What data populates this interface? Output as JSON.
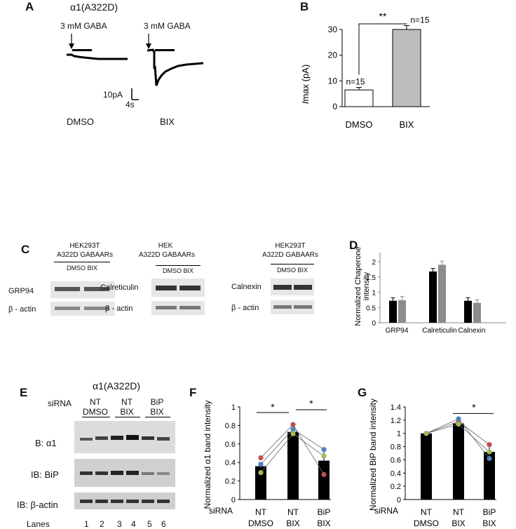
{
  "panels": {
    "A": {
      "letter": "A",
      "title": "α1(A322D)",
      "gaba_label_1": "3 mM GABA",
      "gaba_label_2": "3 mM GABA",
      "scale_current": "10pA",
      "scale_time": "4s",
      "cond_1": "DMSO",
      "cond_2": "BIX"
    },
    "B": {
      "letter": "B"
    },
    "C": {
      "letter": "C",
      "blots": [
        {
          "header_1": "HEK293T",
          "header_2": "A322D GABAARs",
          "lanes": "DMSO BIX",
          "protein": "GRP94",
          "loading": "β - actin"
        },
        {
          "header_1": "HEK",
          "header_2": "A322D GABAARs",
          "lanes": "DMSO BIX",
          "protein": "Calreticulin",
          "loading": "β - actin"
        },
        {
          "header_1": "HEK293T",
          "header_2": "A322D GABAARs",
          "lanes": "DMSO BIX",
          "protein": "Calnexin",
          "loading": "β - actin"
        }
      ]
    },
    "D": {
      "letter": "D"
    },
    "E": {
      "letter": "E",
      "title": "α1(A322D)",
      "sirna_label": "siRNA",
      "groups": [
        {
          "top": "NT",
          "bottom": "DMSO"
        },
        {
          "top": "NT",
          "bottom": "BIX"
        },
        {
          "top": "BiP",
          "bottom": "BIX"
        }
      ],
      "rows": [
        "B: α1",
        "IB: BiP",
        "IB: β-actin"
      ],
      "lanes_label": "Lanes",
      "lanes": [
        "1",
        "2",
        "3",
        "4",
        "5",
        "6"
      ]
    },
    "F": {
      "letter": "F"
    },
    "G": {
      "letter": "G"
    }
  },
  "chart_data": [
    {
      "id": "B",
      "type": "bar",
      "categories": [
        "DMSO",
        "BIX"
      ],
      "values": [
        6.5,
        30
      ],
      "errors": [
        1.0,
        1.5
      ],
      "n_labels": [
        "n=15",
        "n=15"
      ],
      "ylabel": "Imax (pA)",
      "ylabel_italic": "I",
      "ylabel_rest": "max (pA)",
      "ylim": [
        0,
        30
      ],
      "yticks": [
        "0",
        "10",
        "20",
        "30"
      ],
      "significance": "**",
      "colors": [
        "#ffffff",
        "#bdbdbd"
      ]
    },
    {
      "id": "D",
      "type": "bar",
      "categories": [
        "GRP94",
        "Calreticulin",
        "Calnexin"
      ],
      "series": [
        {
          "values": [
            0.72,
            1.68,
            0.72
          ],
          "errors": [
            0.1,
            0.1,
            0.1
          ],
          "color": "#000000"
        },
        {
          "values": [
            0.74,
            1.9,
            0.65
          ],
          "errors": [
            0.12,
            0.12,
            0.1
          ],
          "color": "#8c8c8c"
        }
      ],
      "ylabel": "Normalized Chaperone intensity",
      "ylim": [
        0,
        2.3
      ],
      "yticks": [
        "0",
        "0.5",
        "1",
        "1.5",
        "2"
      ],
      "grid": false
    },
    {
      "id": "F",
      "type": "bar",
      "categories_top": [
        "NT",
        "NT",
        "BiP"
      ],
      "categories_bottom": [
        "DMSO",
        "BIX",
        "BIX"
      ],
      "x_prefix": "siRNA",
      "values": [
        0.36,
        0.73,
        0.42
      ],
      "errors": [
        0.04,
        0.04,
        0.12
      ],
      "points": [
        {
          "color": "#c0504d",
          "values": [
            0.45,
            0.81,
            0.27
          ]
        },
        {
          "color": "#4f81bd",
          "values": [
            0.38,
            0.76,
            0.54
          ]
        },
        {
          "color": "#9bbb59",
          "values": [
            0.29,
            0.71,
            0.47
          ]
        }
      ],
      "ylabel": "Normalized α1 band intensity",
      "ylim": [
        0,
        1
      ],
      "yticks": [
        "0",
        "0.2",
        "0.4",
        "0.6",
        "0.8",
        "1"
      ],
      "significance": [
        "*",
        "*"
      ]
    },
    {
      "id": "G",
      "type": "bar",
      "categories_top": [
        "NT",
        "NT",
        "BiP"
      ],
      "categories_bottom": [
        "DMSO",
        "BIX",
        "BIX"
      ],
      "x_prefix": "siRNA",
      "values": [
        1.0,
        1.15,
        0.72
      ],
      "errors": [
        0.01,
        0.05,
        0.09
      ],
      "points": [
        {
          "color": "#c0504d",
          "values": [
            1.0,
            1.18,
            0.83
          ]
        },
        {
          "color": "#4f81bd",
          "values": [
            1.0,
            1.22,
            0.62
          ]
        },
        {
          "color": "#9bbb59",
          "values": [
            1.0,
            1.14,
            0.72
          ]
        }
      ],
      "ylabel": "Normalized BiP band intensity",
      "ylim": [
        0,
        1.4
      ],
      "yticks": [
        "0",
        "0.2",
        "0.4",
        "0.6",
        "0.8",
        "1",
        "1.2",
        "1.4"
      ],
      "significance": [
        "*"
      ]
    }
  ]
}
